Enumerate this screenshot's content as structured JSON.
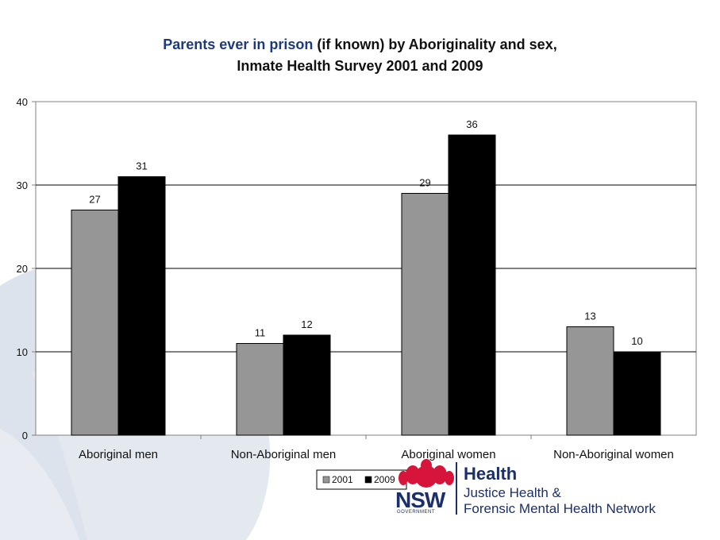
{
  "title": {
    "accent_part": "Parents ever in prison",
    "rest_part": " (if known) by Aboriginality and sex,",
    "line2": "Inmate Health Survey 2001 and 2009"
  },
  "colors": {
    "series_2001": "#969696",
    "series_2009": "#000000",
    "title_accent": "#1f3a7a",
    "logo_navy": "#1b2f6b",
    "logo_red": "#d7153a",
    "background_shape": "#dde3ec"
  },
  "logo": {
    "nsw": "NSW",
    "government": "GOVERNMENT",
    "org_name": "Health",
    "org_sub_line1": "Justice Health &",
    "org_sub_line2": "Forensic Mental Health Network"
  },
  "chart_data": {
    "type": "bar",
    "categories": [
      "Aboriginal men",
      "Non-Aboriginal men",
      "Aboriginal women",
      "Non-Aboriginal women"
    ],
    "series": [
      {
        "name": "2001",
        "values": [
          27,
          11,
          29,
          13
        ]
      },
      {
        "name": "2009",
        "values": [
          31,
          12,
          36,
          10
        ]
      }
    ],
    "ylim": [
      0,
      40
    ],
    "yticks": [
      0,
      10,
      20,
      30,
      40
    ],
    "grid": true,
    "legend_placement": "bottom-center",
    "data_labels": true
  }
}
